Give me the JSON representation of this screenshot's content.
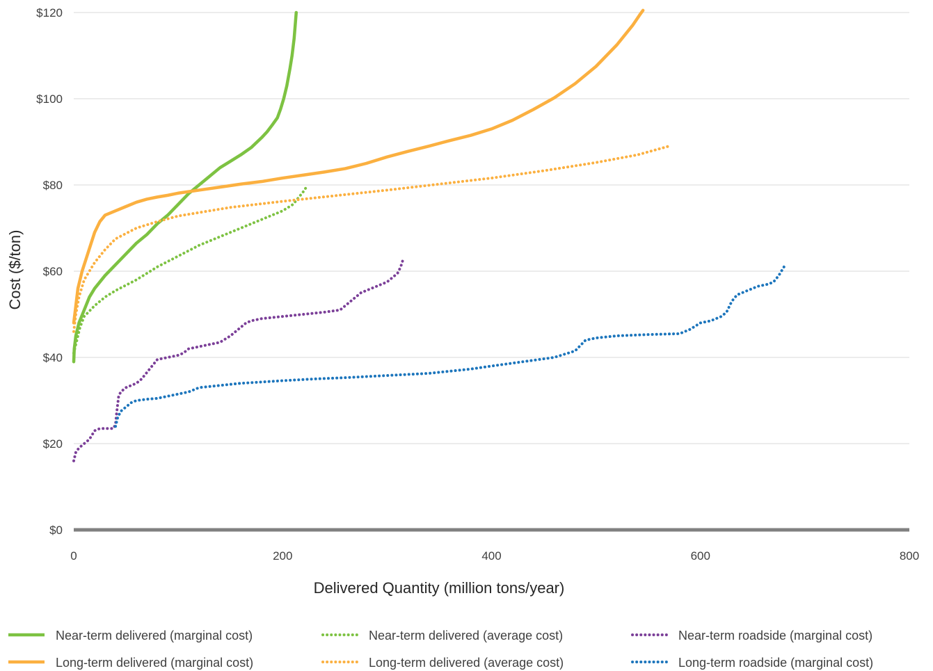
{
  "chart_data": {
    "type": "line",
    "title": "",
    "xlabel": "Delivered Quantity (million tons/year)",
    "ylabel": "Cost ($/ton)",
    "xlim": [
      0,
      800
    ],
    "ylim": [
      0,
      120
    ],
    "x_ticks": [
      0,
      200,
      400,
      600,
      800
    ],
    "x_tick_labels": [
      "0",
      "200",
      "400",
      "600",
      "800"
    ],
    "y_ticks": [
      0,
      20,
      40,
      60,
      80,
      100,
      120
    ],
    "y_tick_labels": [
      "$0",
      "$20",
      "$40",
      "$60",
      "$80",
      "$100",
      "$120"
    ],
    "grid": "horizontal",
    "legend_position": "bottom",
    "series": [
      {
        "name": "Near-term delivered (marginal cost)",
        "color": "#7dc242",
        "style": "solid",
        "points": [
          [
            0,
            39
          ],
          [
            0.5,
            42
          ],
          [
            2,
            45
          ],
          [
            5,
            48
          ],
          [
            10,
            51
          ],
          [
            15,
            54
          ],
          [
            20,
            56
          ],
          [
            30,
            59
          ],
          [
            40,
            61.5
          ],
          [
            50,
            64
          ],
          [
            60,
            66.5
          ],
          [
            70,
            68.5
          ],
          [
            80,
            71
          ],
          [
            90,
            73
          ],
          [
            100,
            75.5
          ],
          [
            110,
            78
          ],
          [
            120,
            80
          ],
          [
            130,
            82
          ],
          [
            140,
            84
          ],
          [
            150,
            85.5
          ],
          [
            160,
            87
          ],
          [
            170,
            88.7
          ],
          [
            180,
            91
          ],
          [
            185,
            92.3
          ],
          [
            190,
            93.9
          ],
          [
            195,
            95.6
          ],
          [
            198,
            97.6
          ],
          [
            201,
            100
          ],
          [
            204,
            103
          ],
          [
            207,
            107
          ],
          [
            209,
            110
          ],
          [
            211,
            114
          ],
          [
            212,
            117
          ],
          [
            213,
            120
          ]
        ]
      },
      {
        "name": "Near-term delivered (average cost)",
        "color": "#7dc242",
        "style": "dotted",
        "points": [
          [
            0,
            41
          ],
          [
            3,
            44
          ],
          [
            6,
            47
          ],
          [
            10,
            49.5
          ],
          [
            20,
            52
          ],
          [
            30,
            54
          ],
          [
            40,
            55.5
          ],
          [
            60,
            58
          ],
          [
            80,
            61
          ],
          [
            100,
            63.5
          ],
          [
            120,
            66
          ],
          [
            140,
            68
          ],
          [
            160,
            70
          ],
          [
            180,
            72
          ],
          [
            200,
            74
          ],
          [
            210,
            75.5
          ],
          [
            215,
            77
          ],
          [
            220,
            78.5
          ],
          [
            224,
            80
          ]
        ]
      },
      {
        "name": "Near-term roadside (marginal cost)",
        "color": "#7b3f98",
        "style": "dotted",
        "points": [
          [
            0,
            16
          ],
          [
            2,
            18
          ],
          [
            5,
            19
          ],
          [
            10,
            20
          ],
          [
            15,
            21
          ],
          [
            20,
            23
          ],
          [
            25,
            23.5
          ],
          [
            30,
            23.5
          ],
          [
            38,
            23.5
          ],
          [
            40,
            24.5
          ],
          [
            41,
            27
          ],
          [
            42,
            29
          ],
          [
            43,
            31
          ],
          [
            45,
            32
          ],
          [
            50,
            33
          ],
          [
            55,
            33.5
          ],
          [
            60,
            34
          ],
          [
            65,
            35
          ],
          [
            70,
            36.5
          ],
          [
            75,
            38
          ],
          [
            80,
            39.5
          ],
          [
            90,
            40
          ],
          [
            100,
            40.5
          ],
          [
            105,
            41
          ],
          [
            110,
            42
          ],
          [
            120,
            42.5
          ],
          [
            130,
            43
          ],
          [
            140,
            43.5
          ],
          [
            150,
            45
          ],
          [
            160,
            47
          ],
          [
            165,
            48
          ],
          [
            170,
            48.5
          ],
          [
            180,
            49
          ],
          [
            200,
            49.5
          ],
          [
            220,
            50
          ],
          [
            240,
            50.5
          ],
          [
            255,
            51
          ],
          [
            260,
            52
          ],
          [
            265,
            53
          ],
          [
            270,
            54
          ],
          [
            275,
            55
          ],
          [
            280,
            55.5
          ],
          [
            290,
            56.5
          ],
          [
            300,
            57.5
          ],
          [
            305,
            58.5
          ],
          [
            310,
            59.5
          ],
          [
            313,
            61
          ],
          [
            315,
            62.5
          ]
        ]
      },
      {
        "name": "Long-term delivered (marginal cost)",
        "color": "#fbb040",
        "style": "solid",
        "points": [
          [
            0,
            48
          ],
          [
            2,
            52
          ],
          [
            4,
            56
          ],
          [
            8,
            60
          ],
          [
            12,
            63
          ],
          [
            16,
            66
          ],
          [
            20,
            69
          ],
          [
            25,
            71.5
          ],
          [
            30,
            73
          ],
          [
            40,
            74
          ],
          [
            50,
            75
          ],
          [
            60,
            76
          ],
          [
            70,
            76.7
          ],
          [
            80,
            77.2
          ],
          [
            90,
            77.6
          ],
          [
            100,
            78.1
          ],
          [
            120,
            78.8
          ],
          [
            140,
            79.5
          ],
          [
            160,
            80.2
          ],
          [
            180,
            80.8
          ],
          [
            200,
            81.6
          ],
          [
            220,
            82.3
          ],
          [
            240,
            83
          ],
          [
            260,
            83.8
          ],
          [
            280,
            85
          ],
          [
            300,
            86.5
          ],
          [
            320,
            87.8
          ],
          [
            340,
            89
          ],
          [
            360,
            90.3
          ],
          [
            380,
            91.5
          ],
          [
            400,
            93
          ],
          [
            420,
            95
          ],
          [
            440,
            97.5
          ],
          [
            460,
            100.2
          ],
          [
            480,
            103.5
          ],
          [
            500,
            107.5
          ],
          [
            520,
            112.5
          ],
          [
            535,
            117
          ],
          [
            542,
            119.5
          ],
          [
            545,
            120.5
          ]
        ]
      },
      {
        "name": "Long-term delivered (average cost)",
        "color": "#fbb040",
        "style": "dotted",
        "points": [
          [
            0,
            46
          ],
          [
            2,
            50
          ],
          [
            5,
            54
          ],
          [
            10,
            58
          ],
          [
            20,
            62
          ],
          [
            30,
            65
          ],
          [
            40,
            67.5
          ],
          [
            60,
            70
          ],
          [
            80,
            71.5
          ],
          [
            100,
            72.8
          ],
          [
            150,
            74.8
          ],
          [
            200,
            76.2
          ],
          [
            250,
            77.5
          ],
          [
            300,
            78.8
          ],
          [
            350,
            80.2
          ],
          [
            400,
            81.6
          ],
          [
            450,
            83.3
          ],
          [
            500,
            85.2
          ],
          [
            540,
            87
          ],
          [
            570,
            89
          ]
        ]
      },
      {
        "name": "Long-term roadside (marginal cost)",
        "color": "#1c75bc",
        "style": "dotted",
        "points": [
          [
            40,
            24
          ],
          [
            42,
            26
          ],
          [
            45,
            27.5
          ],
          [
            50,
            28.5
          ],
          [
            55,
            29.5
          ],
          [
            60,
            30
          ],
          [
            70,
            30.3
          ],
          [
            80,
            30.5
          ],
          [
            90,
            31
          ],
          [
            100,
            31.5
          ],
          [
            110,
            32
          ],
          [
            115,
            32.5
          ],
          [
            120,
            33
          ],
          [
            140,
            33.5
          ],
          [
            160,
            34
          ],
          [
            180,
            34.3
          ],
          [
            200,
            34.6
          ],
          [
            230,
            35
          ],
          [
            260,
            35.3
          ],
          [
            300,
            35.8
          ],
          [
            340,
            36.3
          ],
          [
            380,
            37.3
          ],
          [
            400,
            38
          ],
          [
            430,
            39
          ],
          [
            460,
            40
          ],
          [
            480,
            41.5
          ],
          [
            490,
            44
          ],
          [
            500,
            44.5
          ],
          [
            520,
            45
          ],
          [
            550,
            45.3
          ],
          [
            580,
            45.5
          ],
          [
            590,
            46.5
          ],
          [
            600,
            48
          ],
          [
            610,
            48.5
          ],
          [
            620,
            49.5
          ],
          [
            625,
            50.5
          ],
          [
            630,
            53
          ],
          [
            635,
            54.5
          ],
          [
            645,
            55.5
          ],
          [
            655,
            56.5
          ],
          [
            665,
            57
          ],
          [
            670,
            57.5
          ],
          [
            675,
            59
          ],
          [
            680,
            61
          ]
        ]
      }
    ]
  }
}
